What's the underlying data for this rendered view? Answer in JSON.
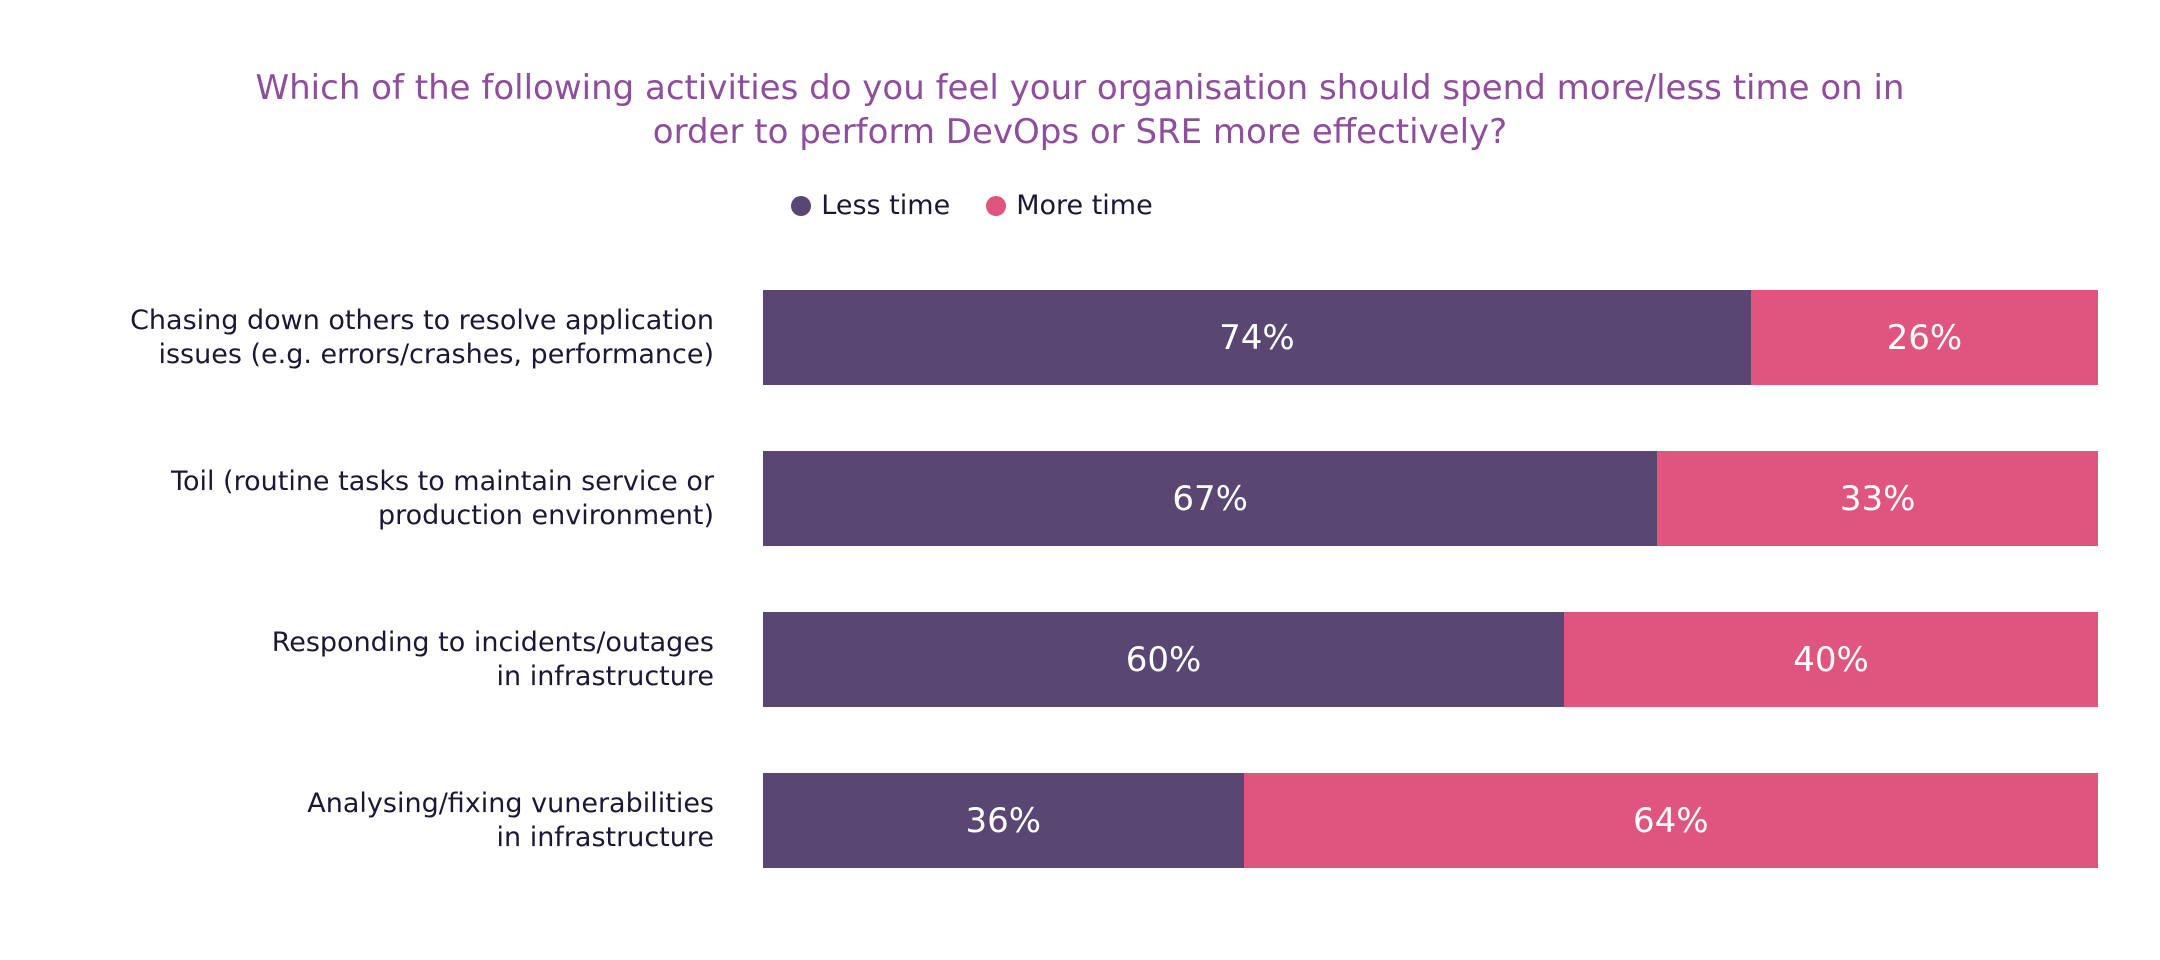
{
  "chart_data": {
    "type": "bar",
    "orientation": "horizontal",
    "stacked": true,
    "title": [
      "Which of the following activities do you feel your organisation should spend more/less time on in",
      "order to perform DevOps or SRE more effectively?"
    ],
    "legend_placement": "top-center",
    "categories": [
      [
        "Chasing down others to resolve application",
        "issues (e.g. errors/crashes, performance)"
      ],
      [
        "Toil (routine tasks to maintain service or",
        "production environment)"
      ],
      [
        "Responding to incidents/outages",
        "in infrastructure"
      ],
      [
        "Analysing/fixing vunerabilities",
        "in infrastructure"
      ]
    ],
    "series": [
      {
        "name": "Less time",
        "color": "#594673",
        "values": [
          74,
          67,
          60,
          36
        ],
        "labels": [
          "74%",
          "67%",
          "60%",
          "36%"
        ]
      },
      {
        "name": "More time",
        "color": "#e0557d",
        "values": [
          26,
          33,
          40,
          64
        ],
        "labels": [
          "26%",
          "33%",
          "40%",
          "64%"
        ]
      }
    ],
    "xlim": [
      0,
      100
    ],
    "grid": false
  }
}
